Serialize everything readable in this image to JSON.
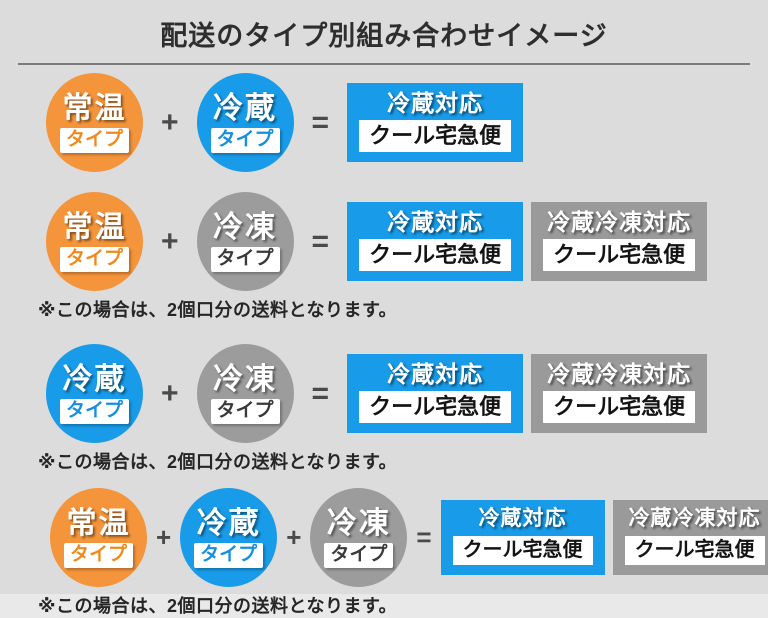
{
  "title": "配送のタイプ別組み合わせイメージ",
  "colors": {
    "orange": "#F4943B",
    "blue": "#189BE8",
    "gray": "#9C9C9C",
    "background": "#DCDCDC"
  },
  "operators": {
    "plus": "+",
    "equals": "="
  },
  "rows": [
    {
      "circles": [
        {
          "label": "常温",
          "badge": "タイプ"
        },
        {
          "label": "冷蔵",
          "badge": "タイプ"
        }
      ],
      "boxes": [
        {
          "title": "冷蔵対応",
          "service": "クール宅急便"
        }
      ]
    },
    {
      "circles": [
        {
          "label": "常温",
          "badge": "タイプ"
        },
        {
          "label": "冷凍",
          "badge": "タイプ"
        }
      ],
      "boxes": [
        {
          "title": "冷蔵対応",
          "service": "クール宅急便"
        },
        {
          "title": "冷蔵冷凍対応",
          "service": "クール宅急便"
        }
      ],
      "note": "※この場合は、2個口分の送料となります。"
    },
    {
      "circles": [
        {
          "label": "冷蔵",
          "badge": "タイプ"
        },
        {
          "label": "冷凍",
          "badge": "タイプ"
        }
      ],
      "boxes": [
        {
          "title": "冷蔵対応",
          "service": "クール宅急便"
        },
        {
          "title": "冷蔵冷凍対応",
          "service": "クール宅急便"
        }
      ],
      "note": "※この場合は、2個口分の送料となります。"
    },
    {
      "circles": [
        {
          "label": "常温",
          "badge": "タイプ"
        },
        {
          "label": "冷蔵",
          "badge": "タイプ"
        },
        {
          "label": "冷凍",
          "badge": "タイプ"
        }
      ],
      "boxes": [
        {
          "title": "冷蔵対応",
          "service": "クール宅急便"
        },
        {
          "title": "冷蔵冷凍対応",
          "service": "クール宅急便"
        }
      ],
      "note": "※この場合は、2個口分の送料となります。"
    }
  ]
}
